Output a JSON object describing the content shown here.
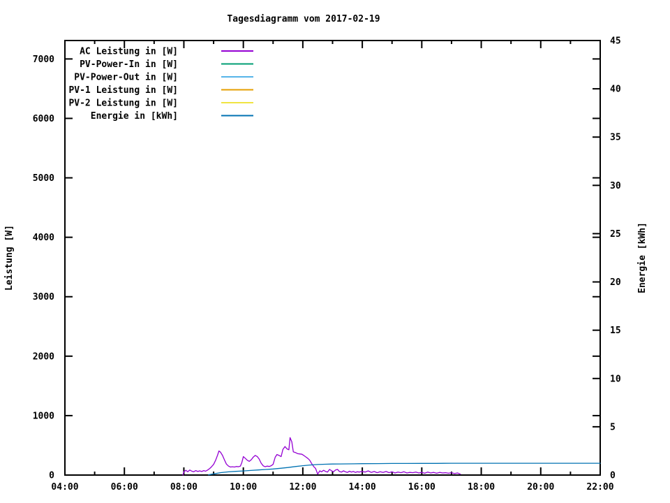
{
  "title": "Tagesdiagramm vom 2017-02-19",
  "chart_data": {
    "type": "line",
    "title": "Tagesdiagramm vom 2017-02-19",
    "xlabel": "",
    "ylabel_left": "Leistung [W]",
    "ylabel_right": "Energie [kWh]",
    "background": "#ffffff",
    "text_color": "#000000",
    "grid": false,
    "legend_position": "top-left-inside",
    "x_axis": {
      "range_hours": [
        4,
        22
      ],
      "major_ticks": [
        [
          4,
          "04:00"
        ],
        [
          6,
          "06:00"
        ],
        [
          8,
          "08:00"
        ],
        [
          10,
          "10:00"
        ],
        [
          12,
          "12:00"
        ],
        [
          14,
          "14:00"
        ],
        [
          16,
          "16:00"
        ],
        [
          18,
          "18:00"
        ],
        [
          20,
          "20:00"
        ],
        [
          22,
          "22:00"
        ]
      ],
      "minor_step_hours": 1
    },
    "left_axis": {
      "range": [
        0,
        7310
      ],
      "ticks": [
        [
          0,
          "0"
        ],
        [
          1000,
          "1000"
        ],
        [
          2000,
          "2000"
        ],
        [
          3000,
          "3000"
        ],
        [
          4000,
          "4000"
        ],
        [
          5000,
          "5000"
        ],
        [
          6000,
          "6000"
        ],
        [
          7000,
          "7000"
        ]
      ]
    },
    "right_axis": {
      "range": [
        0,
        45
      ],
      "ticks": [
        [
          0,
          "0"
        ],
        [
          5,
          "5"
        ],
        [
          10,
          "10"
        ],
        [
          15,
          "15"
        ],
        [
          20,
          "20"
        ],
        [
          25,
          "25"
        ],
        [
          30,
          "30"
        ],
        [
          35,
          "35"
        ],
        [
          40,
          "40"
        ],
        [
          45,
          "45"
        ]
      ]
    },
    "series": [
      {
        "name": "AC Leistung in [W]",
        "color": "#9400D3",
        "axis": "left",
        "points": [
          [
            7.97,
            0
          ],
          [
            8.0,
            55
          ],
          [
            8.07,
            80
          ],
          [
            8.13,
            55
          ],
          [
            8.2,
            85
          ],
          [
            8.27,
            65
          ],
          [
            8.33,
            55
          ],
          [
            8.4,
            75
          ],
          [
            8.47,
            60
          ],
          [
            8.53,
            70
          ],
          [
            8.6,
            60
          ],
          [
            8.67,
            75
          ],
          [
            8.73,
            65
          ],
          [
            8.8,
            85
          ],
          [
            8.87,
            110
          ],
          [
            8.93,
            140
          ],
          [
            9.0,
            180
          ],
          [
            9.07,
            250
          ],
          [
            9.13,
            330
          ],
          [
            9.18,
            405
          ],
          [
            9.23,
            385
          ],
          [
            9.3,
            330
          ],
          [
            9.37,
            250
          ],
          [
            9.43,
            185
          ],
          [
            9.5,
            150
          ],
          [
            9.57,
            135
          ],
          [
            9.63,
            140
          ],
          [
            9.7,
            135
          ],
          [
            9.77,
            145
          ],
          [
            9.83,
            140
          ],
          [
            9.9,
            150
          ],
          [
            9.95,
            210
          ],
          [
            10.0,
            310
          ],
          [
            10.07,
            280
          ],
          [
            10.13,
            250
          ],
          [
            10.2,
            230
          ],
          [
            10.27,
            260
          ],
          [
            10.33,
            300
          ],
          [
            10.4,
            330
          ],
          [
            10.47,
            310
          ],
          [
            10.53,
            270
          ],
          [
            10.6,
            200
          ],
          [
            10.67,
            155
          ],
          [
            10.73,
            140
          ],
          [
            10.8,
            150
          ],
          [
            10.87,
            145
          ],
          [
            10.93,
            155
          ],
          [
            11.0,
            180
          ],
          [
            11.07,
            300
          ],
          [
            11.13,
            345
          ],
          [
            11.2,
            330
          ],
          [
            11.27,
            310
          ],
          [
            11.33,
            430
          ],
          [
            11.4,
            480
          ],
          [
            11.47,
            440
          ],
          [
            11.53,
            425
          ],
          [
            11.57,
            630
          ],
          [
            11.63,
            560
          ],
          [
            11.68,
            390
          ],
          [
            11.75,
            380
          ],
          [
            11.83,
            360
          ],
          [
            11.9,
            355
          ],
          [
            11.97,
            350
          ],
          [
            12.03,
            330
          ],
          [
            12.1,
            305
          ],
          [
            12.17,
            280
          ],
          [
            12.23,
            250
          ],
          [
            12.3,
            190
          ],
          [
            12.37,
            140
          ],
          [
            12.43,
            110
          ],
          [
            12.5,
            15
          ],
          [
            12.57,
            70
          ],
          [
            12.63,
            55
          ],
          [
            12.7,
            80
          ],
          [
            12.77,
            60
          ],
          [
            12.83,
            50
          ],
          [
            12.9,
            95
          ],
          [
            12.97,
            70
          ],
          [
            13.03,
            55
          ],
          [
            13.1,
            85
          ],
          [
            13.17,
            95
          ],
          [
            13.23,
            60
          ],
          [
            13.3,
            50
          ],
          [
            13.37,
            70
          ],
          [
            13.43,
            55
          ],
          [
            13.5,
            45
          ],
          [
            13.57,
            65
          ],
          [
            13.63,
            50
          ],
          [
            13.7,
            60
          ],
          [
            13.77,
            45
          ],
          [
            13.83,
            55
          ],
          [
            13.9,
            50
          ],
          [
            13.97,
            60
          ],
          [
            14.1,
            50
          ],
          [
            14.2,
            70
          ],
          [
            14.3,
            45
          ],
          [
            14.4,
            60
          ],
          [
            14.5,
            40
          ],
          [
            14.6,
            55
          ],
          [
            14.7,
            45
          ],
          [
            14.8,
            60
          ],
          [
            14.9,
            40
          ],
          [
            15.0,
            55
          ],
          [
            15.1,
            35
          ],
          [
            15.2,
            50
          ],
          [
            15.3,
            40
          ],
          [
            15.4,
            55
          ],
          [
            15.5,
            35
          ],
          [
            15.6,
            45
          ],
          [
            15.7,
            40
          ],
          [
            15.8,
            50
          ],
          [
            15.9,
            35
          ],
          [
            16.0,
            45
          ],
          [
            16.1,
            30
          ],
          [
            16.2,
            50
          ],
          [
            16.3,
            35
          ],
          [
            16.4,
            45
          ],
          [
            16.5,
            30
          ],
          [
            16.6,
            45
          ],
          [
            16.7,
            35
          ],
          [
            16.8,
            40
          ],
          [
            16.9,
            30
          ],
          [
            17.0,
            40
          ],
          [
            17.1,
            25
          ],
          [
            17.2,
            35
          ],
          [
            17.3,
            15
          ]
        ]
      },
      {
        "name": "PV-Power-In in [W]",
        "color": "#009E73",
        "axis": "left",
        "points": []
      },
      {
        "name": "PV-Power-Out in [W]",
        "color": "#56B4E9",
        "axis": "left",
        "points": []
      },
      {
        "name": "PV-1 Leistung in [W]",
        "color": "#E69F00",
        "axis": "left",
        "points": []
      },
      {
        "name": "PV-2 Leistung in [W]",
        "color": "#F0E442",
        "axis": "left",
        "points": []
      },
      {
        "name": "Energie in [kWh]",
        "color": "#0072B2",
        "axis": "right",
        "points": [
          [
            8.83,
            0.02
          ],
          [
            9.0,
            0.12
          ],
          [
            9.25,
            0.25
          ],
          [
            9.5,
            0.33
          ],
          [
            9.75,
            0.38
          ],
          [
            10.0,
            0.43
          ],
          [
            10.25,
            0.48
          ],
          [
            10.5,
            0.53
          ],
          [
            10.75,
            0.58
          ],
          [
            11.0,
            0.63
          ],
          [
            11.25,
            0.7
          ],
          [
            11.5,
            0.78
          ],
          [
            11.75,
            0.88
          ],
          [
            12.0,
            0.97
          ],
          [
            12.25,
            1.04
          ],
          [
            12.5,
            1.09
          ],
          [
            12.75,
            1.12
          ],
          [
            13.0,
            1.14
          ],
          [
            13.25,
            1.15
          ],
          [
            13.5,
            1.16
          ],
          [
            14.0,
            1.18
          ],
          [
            14.5,
            1.19
          ],
          [
            15.0,
            1.2
          ],
          [
            15.5,
            1.2
          ],
          [
            16.0,
            1.21
          ],
          [
            16.5,
            1.21
          ],
          [
            17.0,
            1.22
          ],
          [
            17.5,
            1.22
          ],
          [
            18.0,
            1.22
          ],
          [
            19.0,
            1.22
          ],
          [
            20.0,
            1.22
          ],
          [
            21.0,
            1.22
          ],
          [
            22.0,
            1.22
          ]
        ]
      }
    ]
  }
}
